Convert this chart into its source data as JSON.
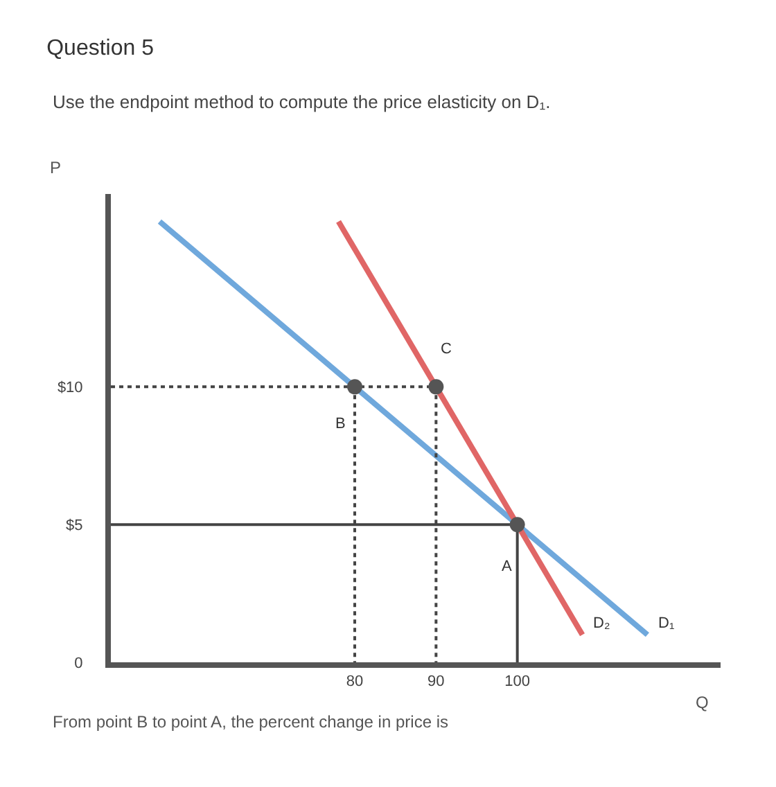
{
  "chart_data": {
    "type": "line",
    "title": "Question 5",
    "subtitle": "Use the endpoint method to compute the price elasticity on D₁.",
    "xlabel": "Q",
    "ylabel": "P",
    "xlim": [
      50,
      125
    ],
    "ylim": [
      0,
      17
    ],
    "xticks": [
      80,
      90,
      100
    ],
    "yticks": [
      0,
      {
        "value": 5,
        "label": "$5"
      },
      {
        "value": 10,
        "label": "$10"
      }
    ],
    "grid": false,
    "legend": false,
    "series": [
      {
        "name": "D₁",
        "color": "#6fa8dc",
        "x": [
          56,
          116
        ],
        "values": [
          16,
          1
        ]
      },
      {
        "name": "D₂",
        "color": "#e06666",
        "x": [
          78,
          108
        ],
        "values": [
          16,
          1
        ]
      },
      {
        "color": "#444444",
        "line_style": "dotted",
        "x": [
          50,
          90
        ],
        "values": [
          10,
          10
        ]
      },
      {
        "color": "#444444",
        "line_style": "dotted",
        "x": [
          80,
          80
        ],
        "values": [
          10,
          0
        ]
      },
      {
        "color": "#444444",
        "line_style": "dotted",
        "x": [
          90,
          90
        ],
        "values": [
          10,
          0
        ]
      },
      {
        "color": "#444444",
        "line_style": "solid",
        "x": [
          50,
          100,
          100
        ],
        "values": [
          5,
          5,
          0
        ]
      },
      {
        "type": "scatter",
        "color": "#555555",
        "marker": "circle",
        "x": [
          80,
          90,
          100
        ],
        "values": [
          10,
          10,
          5
        ]
      }
    ],
    "annotations": [
      {
        "text": "A",
        "x": 100,
        "y": 5
      },
      {
        "text": "B",
        "x": 80,
        "y": 10
      },
      {
        "text": "C",
        "x": 90,
        "y": 10
      },
      "From point B to point A, the percent change in price is"
    ]
  }
}
